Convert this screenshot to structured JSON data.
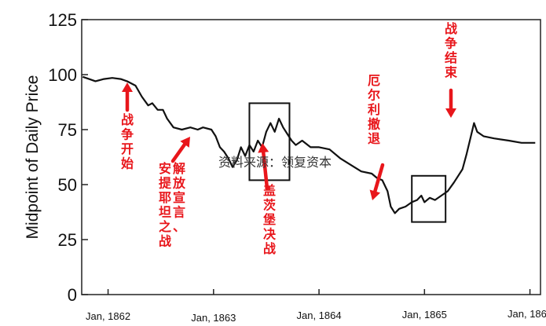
{
  "chart_data": {
    "type": "line",
    "title": "",
    "xlabel": "",
    "ylabel": "Midpoint of Daily Price",
    "ylim": [
      0,
      125
    ],
    "yticks": [
      0,
      25,
      50,
      75,
      100,
      125
    ],
    "xlim": [
      1861.75,
      1866.1
    ],
    "xticks": [
      {
        "value": 1862,
        "label": "Jan, 1862"
      },
      {
        "value": 1863,
        "label": "Jan, 1863"
      },
      {
        "value": 1864,
        "label": "Jan, 1864"
      },
      {
        "value": 1865,
        "label": "Jan, 1865"
      },
      {
        "value": 1866,
        "label": "Jan, 1866"
      }
    ],
    "grid": false,
    "line_color": "#111111",
    "annotation_color": "#e8161b",
    "series": [
      {
        "values": [
          [
            1861.76,
            99
          ],
          [
            1861.82,
            98
          ],
          [
            1861.88,
            97
          ],
          [
            1861.96,
            98
          ],
          [
            1862.04,
            98.5
          ],
          [
            1862.12,
            98
          ],
          [
            1862.18,
            97
          ],
          [
            1862.26,
            95
          ],
          [
            1862.32,
            90
          ],
          [
            1862.38,
            86
          ],
          [
            1862.42,
            87
          ],
          [
            1862.47,
            84
          ],
          [
            1862.52,
            84
          ],
          [
            1862.56,
            80
          ],
          [
            1862.62,
            76
          ],
          [
            1862.7,
            75
          ],
          [
            1862.78,
            76
          ],
          [
            1862.85,
            75
          ],
          [
            1862.9,
            76
          ],
          [
            1862.98,
            75
          ],
          [
            1863.02,
            72
          ],
          [
            1863.06,
            67
          ],
          [
            1863.1,
            65
          ],
          [
            1863.14,
            62
          ],
          [
            1863.18,
            58
          ],
          [
            1863.22,
            61
          ],
          [
            1863.26,
            67
          ],
          [
            1863.3,
            63
          ],
          [
            1863.34,
            68
          ],
          [
            1863.38,
            65
          ],
          [
            1863.42,
            70
          ],
          [
            1863.46,
            67
          ],
          [
            1863.5,
            74
          ],
          [
            1863.54,
            78
          ],
          [
            1863.58,
            74
          ],
          [
            1863.62,
            80
          ],
          [
            1863.66,
            76
          ],
          [
            1863.7,
            73
          ],
          [
            1863.74,
            70
          ],
          [
            1863.78,
            68
          ],
          [
            1863.84,
            70
          ],
          [
            1863.92,
            67
          ],
          [
            1864.0,
            67
          ],
          [
            1864.1,
            66
          ],
          [
            1864.2,
            62
          ],
          [
            1864.3,
            59
          ],
          [
            1864.4,
            56
          ],
          [
            1864.5,
            55
          ],
          [
            1864.55,
            53
          ],
          [
            1864.6,
            52
          ],
          [
            1864.65,
            47
          ],
          [
            1864.68,
            40
          ],
          [
            1864.72,
            37
          ],
          [
            1864.76,
            39
          ],
          [
            1864.82,
            40
          ],
          [
            1864.88,
            42
          ],
          [
            1864.93,
            43
          ],
          [
            1864.97,
            45
          ],
          [
            1865.0,
            42
          ],
          [
            1865.05,
            44
          ],
          [
            1865.1,
            43
          ],
          [
            1865.16,
            45
          ],
          [
            1865.22,
            47
          ],
          [
            1865.28,
            51
          ],
          [
            1865.32,
            54
          ],
          [
            1865.36,
            57
          ],
          [
            1865.4,
            64
          ],
          [
            1865.44,
            72
          ],
          [
            1865.47,
            78
          ],
          [
            1865.5,
            74
          ],
          [
            1865.56,
            72
          ],
          [
            1865.66,
            71
          ],
          [
            1865.8,
            70
          ],
          [
            1865.92,
            69
          ],
          [
            1866.05,
            69
          ]
        ]
      }
    ],
    "boxes": [
      {
        "x0": 1863.34,
        "x1": 1863.72,
        "y0": 52,
        "y1": 87
      },
      {
        "x0": 1864.88,
        "x1": 1865.2,
        "y0": 33,
        "y1": 54
      }
    ],
    "annotations": [
      {
        "id": "war-start",
        "text": "战争开始",
        "direction": "up",
        "x": 1862.02,
        "y": 99
      },
      {
        "id": "emancipation",
        "text": "解放宣言、安提耶坦之战",
        "direction": "up",
        "x": 1862.87,
        "y": 76
      },
      {
        "id": "gettysburg",
        "text": "盖茨堡决战",
        "direction": "up",
        "x": 1863.56,
        "y": 79
      },
      {
        "id": "lee-retreat",
        "text": "厄尔利撤退",
        "direction": "down",
        "x": 1864.66,
        "y": 40
      },
      {
        "id": "war-end",
        "text": "战争结束",
        "direction": "down",
        "x": 1865.47,
        "y": 80
      }
    ],
    "source_note": "资料来源：领复资本"
  }
}
